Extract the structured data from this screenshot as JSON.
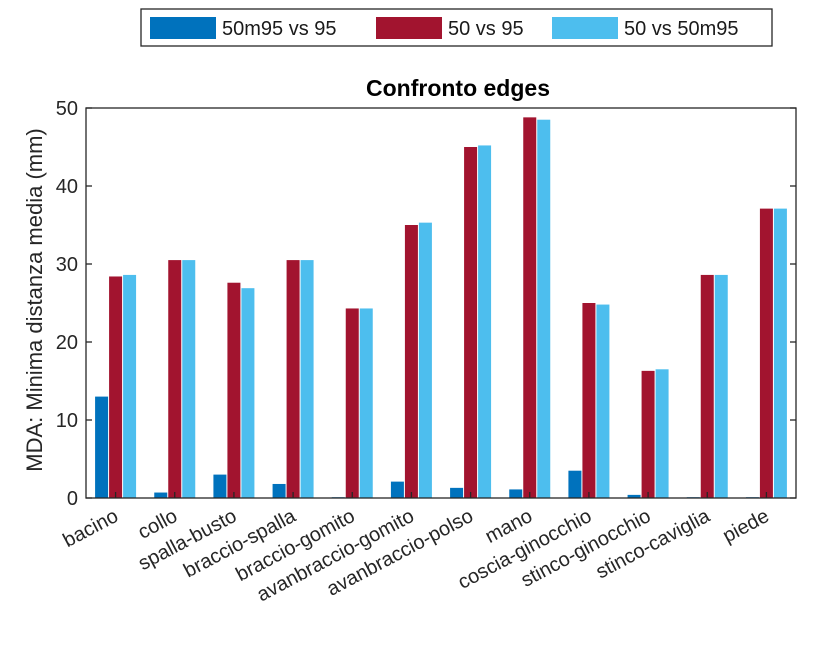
{
  "chart_data": {
    "type": "bar",
    "title": "Confronto edges",
    "xlabel": "",
    "ylabel": "MDA: Minima distanza media (mm)",
    "ylim": [
      0,
      50
    ],
    "yticks": [
      0,
      10,
      20,
      30,
      40,
      50
    ],
    "grid": false,
    "legend_position": "top",
    "categories": [
      "bacino",
      "collo",
      "spalla-busto",
      "braccio-spalla",
      "braccio-gomito",
      "avanbraccio-gomito",
      "avanbraccio-polso",
      "mano",
      "coscia-ginocchio",
      "stinco-ginocchio",
      "stinco-caviglia",
      "piede"
    ],
    "series": [
      {
        "name": "50m95 vs 95",
        "color": "#0072BD",
        "values": [
          13.0,
          0.7,
          3.0,
          1.8,
          0.1,
          2.1,
          1.3,
          1.1,
          3.5,
          0.4,
          0.1,
          0.1
        ]
      },
      {
        "name": "50 vs 95",
        "color": "#A2142F",
        "values": [
          28.4,
          30.5,
          27.6,
          30.5,
          24.3,
          35.0,
          45.0,
          48.8,
          25.0,
          16.3,
          28.6,
          37.1
        ]
      },
      {
        "name": "50 vs 50m95",
        "color": "#4DBEEE",
        "values": [
          28.6,
          30.5,
          26.9,
          30.5,
          24.3,
          35.3,
          45.2,
          48.5,
          24.8,
          16.5,
          28.6,
          37.1
        ]
      }
    ]
  }
}
